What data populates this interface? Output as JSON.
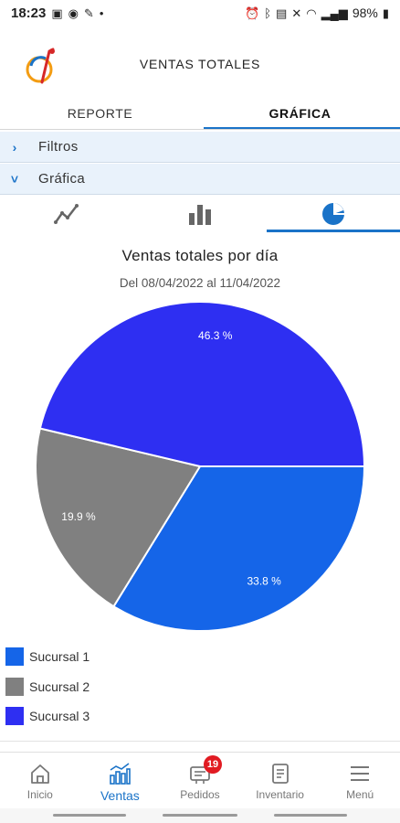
{
  "status_bar": {
    "time": "18:23",
    "battery": "98%"
  },
  "header": {
    "title": "VENTAS TOTALES"
  },
  "tabs": [
    {
      "label": "REPORTE",
      "active": false
    },
    {
      "label": "GRÁFICA",
      "active": true
    }
  ],
  "sections": {
    "filtros": "Filtros",
    "grafica": "Gráfica"
  },
  "chart_selector": {
    "options": [
      "line-chart-icon",
      "bar-chart-icon",
      "pie-chart-icon"
    ],
    "active": "pie"
  },
  "chart_data": {
    "type": "pie",
    "title": "Ventas totales por día",
    "subtitle": "Del 08/04/2022 al 11/04/2022",
    "slices": [
      {
        "name": "Sucursal 1",
        "value": 33.8,
        "label": "33.8 %",
        "color": "#1565e8"
      },
      {
        "name": "Sucursal 2",
        "value": 19.9,
        "label": "19.9 %",
        "color": "#808080"
      },
      {
        "name": "Sucursal 3",
        "value": 46.3,
        "label": "46.3 %",
        "color": "#2e2ff2"
      }
    ],
    "legend_position": "bottom-left"
  },
  "legend": [
    {
      "label": "Sucursal 1",
      "color": "#1565e8"
    },
    {
      "label": "Sucursal 2",
      "color": "#808080"
    },
    {
      "label": "Sucursal 3",
      "color": "#2e2ff2"
    }
  ],
  "bottom_nav": [
    {
      "label": "Inicio",
      "icon": "home-icon",
      "active": false
    },
    {
      "label": "Ventas",
      "icon": "sales-chart-icon",
      "active": true
    },
    {
      "label": "Pedidos",
      "icon": "orders-icon",
      "active": false,
      "badge": "19"
    },
    {
      "label": "Inventario",
      "icon": "inventory-icon",
      "active": false
    },
    {
      "label": "Menú",
      "icon": "menu-icon",
      "active": false
    }
  ],
  "colors": {
    "accent": "#1a73c8",
    "section_bg": "#e9f2fb",
    "badge": "#e11b22"
  }
}
